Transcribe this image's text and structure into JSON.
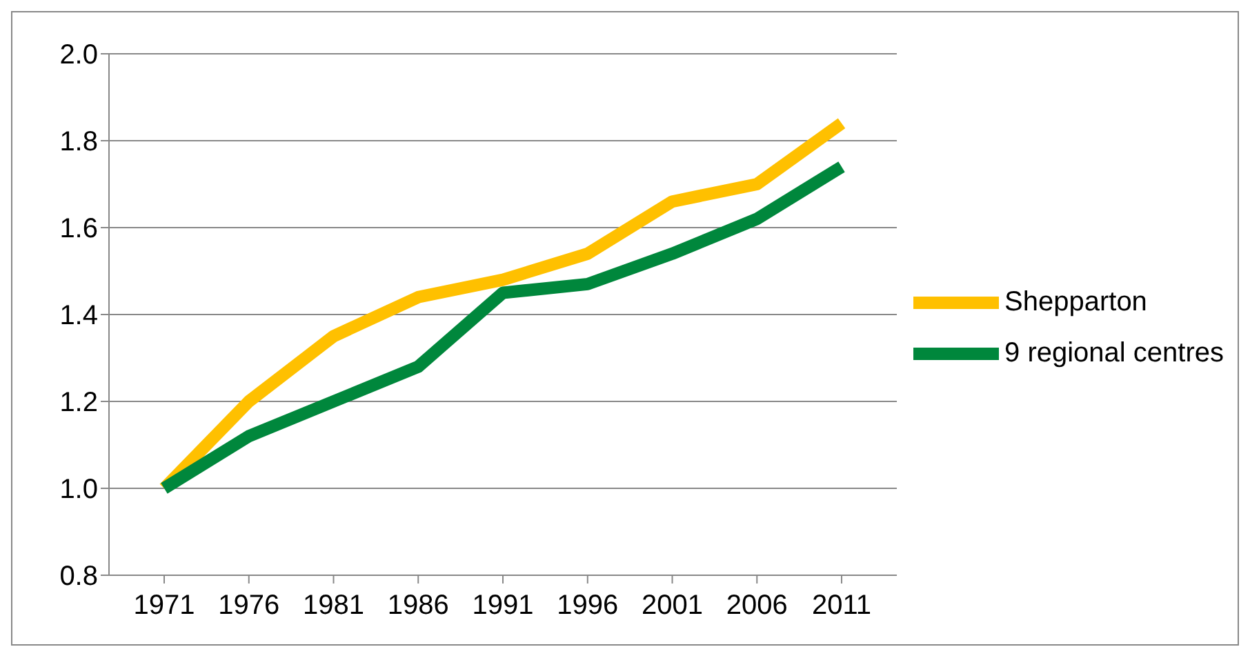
{
  "chart_data": {
    "type": "line",
    "categories": [
      "1971",
      "1976",
      "1981",
      "1986",
      "1991",
      "1996",
      "2001",
      "2006",
      "2011"
    ],
    "series": [
      {
        "name": "Shepparton",
        "color": "#ffc000",
        "values": [
          1.0,
          1.2,
          1.35,
          1.44,
          1.48,
          1.54,
          1.66,
          1.7,
          1.84
        ]
      },
      {
        "name": "9 regional centres",
        "color": "#00873c",
        "values": [
          1.0,
          1.12,
          1.2,
          1.28,
          1.45,
          1.47,
          1.54,
          1.62,
          1.74
        ]
      }
    ],
    "ylim": [
      0.8,
      2.0
    ],
    "yticks": [
      {
        "value": 0.8,
        "label": "0.8"
      },
      {
        "value": 1.0,
        "label": "1.0"
      },
      {
        "value": 1.2,
        "label": "1.2"
      },
      {
        "value": 1.4,
        "label": "1.4"
      },
      {
        "value": 1.6,
        "label": "1.6"
      },
      {
        "value": 1.8,
        "label": "1.8"
      },
      {
        "value": 2.0,
        "label": "2.0"
      }
    ],
    "grid": "y",
    "legend": "right",
    "marker": "none",
    "line_style": "solid"
  }
}
